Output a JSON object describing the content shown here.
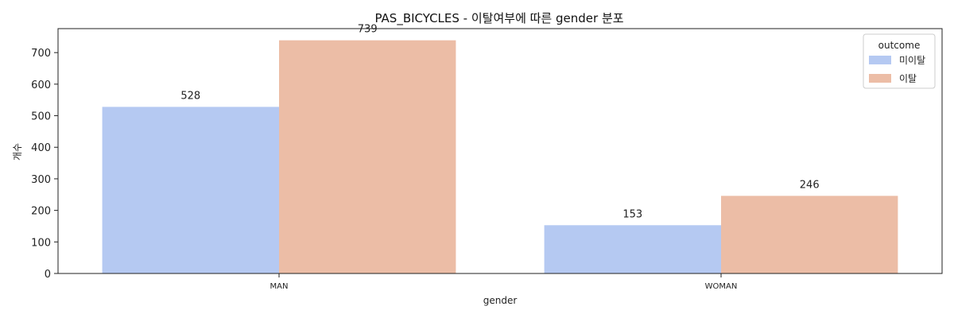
{
  "chart_data": {
    "type": "bar",
    "title": "PAS_BICYCLES - 이탈여부에 따른 gender 분포",
    "xlabel": "gender",
    "ylabel": "개수",
    "categories": [
      "MAN",
      "WOMAN"
    ],
    "series": [
      {
        "name": "미이탈",
        "color": "#b5c9f2",
        "values": [
          528,
          153
        ]
      },
      {
        "name": "이탈",
        "color": "#ecbda6",
        "values": [
          739,
          246
        ]
      }
    ],
    "ylim": [
      0,
      776
    ],
    "yticks": [
      0,
      100,
      200,
      300,
      400,
      500,
      600,
      700
    ],
    "legend": {
      "title": "outcome",
      "position": "top-right"
    },
    "grid": false
  }
}
